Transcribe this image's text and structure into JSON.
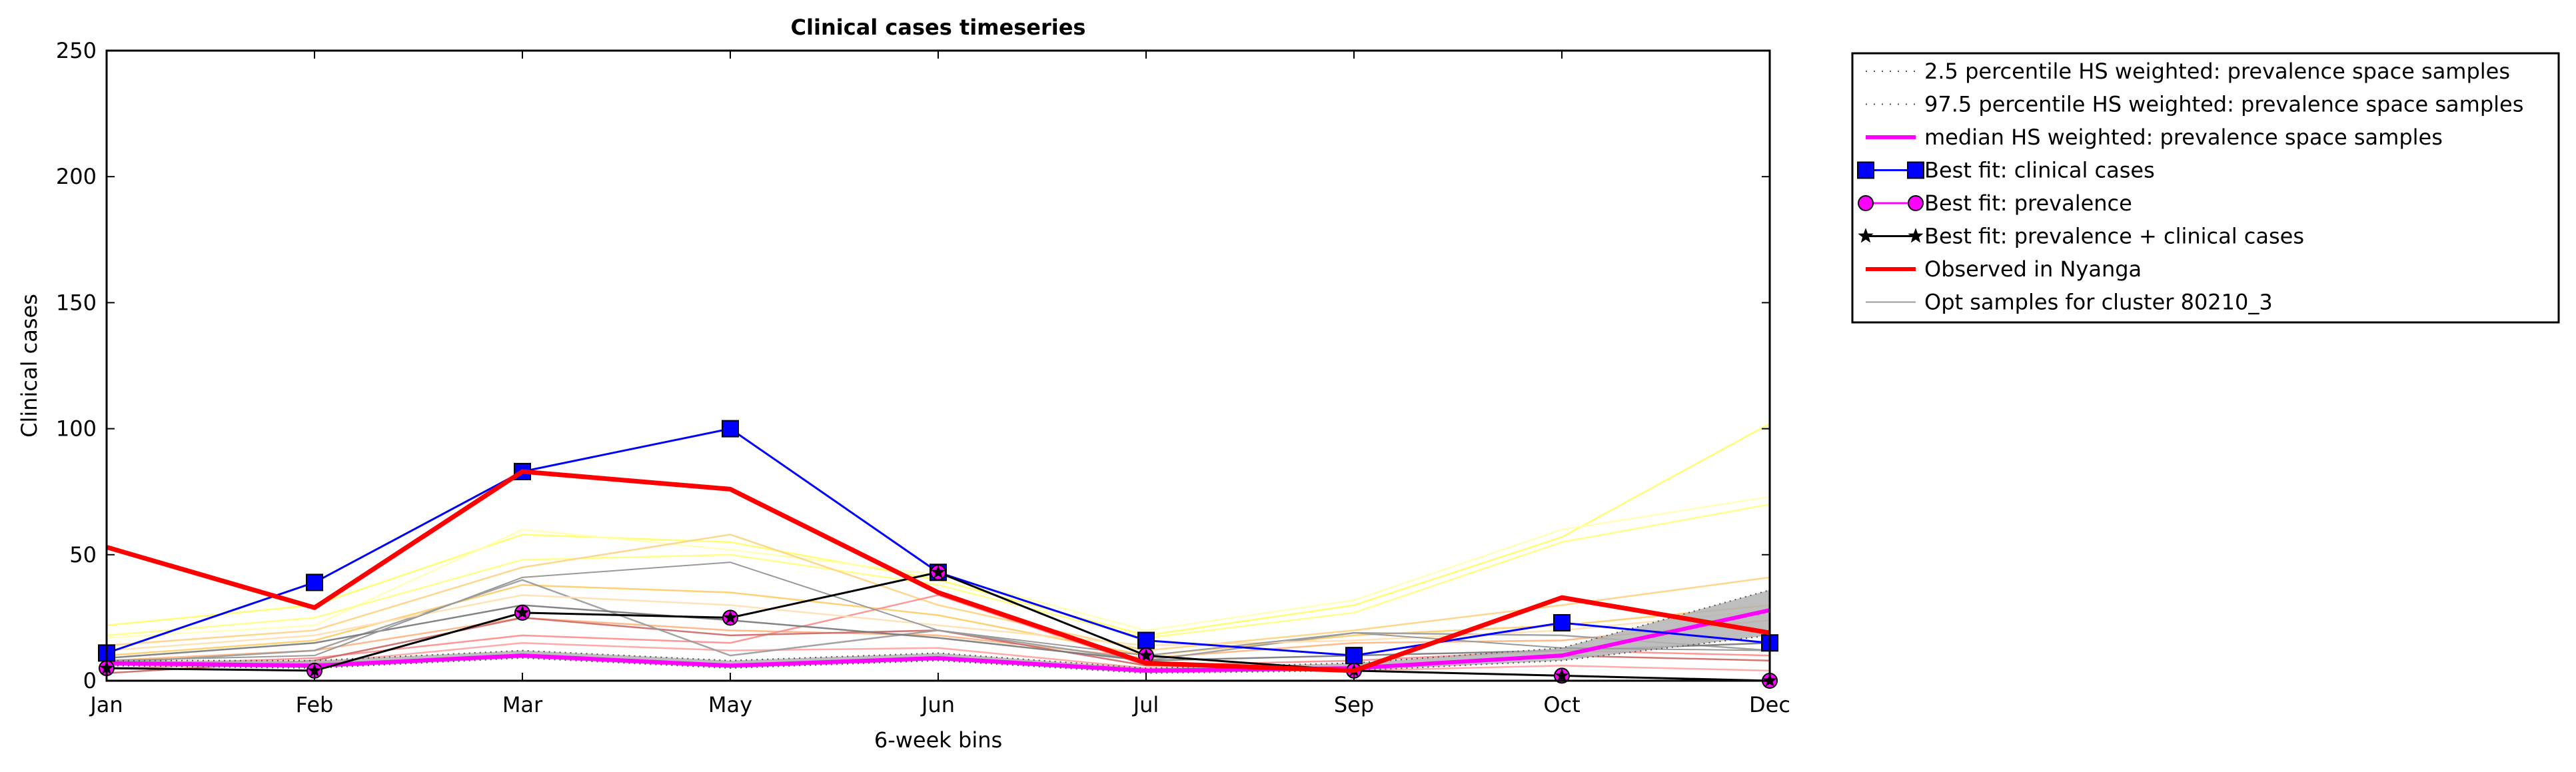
{
  "chart_data": {
    "type": "line",
    "title": "Clinical cases timeseries",
    "xlabel": "6-week bins",
    "ylabel": "Clinical cases",
    "categories": [
      "Jan",
      "Feb",
      "Mar",
      "May",
      "Jun",
      "Jul",
      "Sep",
      "Oct",
      "Dec"
    ],
    "ylim": [
      0,
      250
    ],
    "yticks": [
      0,
      50,
      100,
      150,
      200,
      250
    ],
    "grid": false,
    "legend_position": "outside-right-top",
    "colors": {
      "best_fit_clinical": "#0000ff",
      "best_fit_prevalence": "#ff00ff",
      "best_fit_combined": "#000000",
      "observed": "#ff0000",
      "median": "#ff00ff",
      "percentile": "#555555",
      "band": "#b3b3b3",
      "opt_samples": "#999999"
    },
    "series": [
      {
        "name": "2.5 percentile HS weighted: prevalence space samples",
        "style": "dotted",
        "values": [
          6,
          5,
          9,
          5,
          8,
          3,
          4,
          8,
          18
        ]
      },
      {
        "name": "97.5 percentile HS weighted: prevalence space samples",
        "style": "dotted",
        "values": [
          8,
          8,
          12,
          8,
          11,
          5,
          7,
          13,
          36
        ]
      },
      {
        "name": "median HS weighted: prevalence space samples",
        "style": "magenta",
        "values": [
          7,
          6,
          10,
          6,
          9,
          4,
          5,
          10,
          28
        ]
      },
      {
        "name": "Best fit: clinical cases",
        "style": "blue-square",
        "values": [
          11,
          39,
          83,
          100,
          43,
          16,
          10,
          23,
          15
        ]
      },
      {
        "name": "Best fit: prevalence",
        "style": "magenta-circle",
        "values": [
          5,
          4,
          27,
          25,
          43,
          10,
          4,
          2,
          0
        ]
      },
      {
        "name": "Best fit: prevalence + clinical cases",
        "style": "black-star",
        "values": [
          5,
          4,
          27,
          25,
          43,
          10,
          4,
          2,
          0
        ]
      },
      {
        "name": "Observed in Nyanga",
        "style": "red-thick",
        "values": [
          53,
          29,
          83,
          76,
          35,
          7,
          4,
          33,
          19
        ]
      },
      {
        "name": "Opt samples for cluster 80210_3",
        "style": "thin-gray",
        "values": [
          8,
          10,
          41,
          47,
          20,
          10,
          19,
          13,
          12
        ]
      }
    ],
    "sample_lines": [
      {
        "color": "#ffff66",
        "values": [
          22,
          30,
          58,
          55,
          40,
          18,
          30,
          57,
          102
        ]
      },
      {
        "color": "#ffffb3",
        "values": [
          17,
          22,
          60,
          52,
          42,
          20,
          32,
          60,
          73
        ]
      },
      {
        "color": "#ffff80",
        "values": [
          18,
          25,
          48,
          50,
          38,
          17,
          27,
          55,
          70
        ]
      },
      {
        "color": "#ffd27f",
        "values": [
          14,
          20,
          45,
          58,
          30,
          12,
          20,
          30,
          41
        ]
      },
      {
        "color": "#ffcc66",
        "values": [
          10,
          16,
          38,
          35,
          26,
          10,
          18,
          22,
          30
        ]
      },
      {
        "color": "#ffb380",
        "values": [
          8,
          12,
          25,
          20,
          18,
          9,
          15,
          16,
          24
        ]
      },
      {
        "color": "#ff8c8c",
        "values": [
          6,
          9,
          18,
          15,
          34,
          6,
          8,
          12,
          10
        ]
      },
      {
        "color": "#cc6666",
        "values": [
          3,
          8,
          25,
          18,
          20,
          6,
          5,
          10,
          8
        ]
      },
      {
        "color": "#ffa0a0",
        "values": [
          5,
          7,
          15,
          12,
          13,
          5,
          4,
          6,
          4
        ]
      },
      {
        "color": "#999999",
        "values": [
          7,
          12,
          40,
          10,
          20,
          8,
          19,
          18,
          12
        ]
      },
      {
        "color": "#777777",
        "values": [
          9,
          15,
          30,
          24,
          17,
          8,
          10,
          12,
          15
        ]
      },
      {
        "color": "#ffe0b0",
        "values": [
          12,
          18,
          34,
          30,
          22,
          14,
          16,
          20,
          28
        ]
      }
    ]
  }
}
